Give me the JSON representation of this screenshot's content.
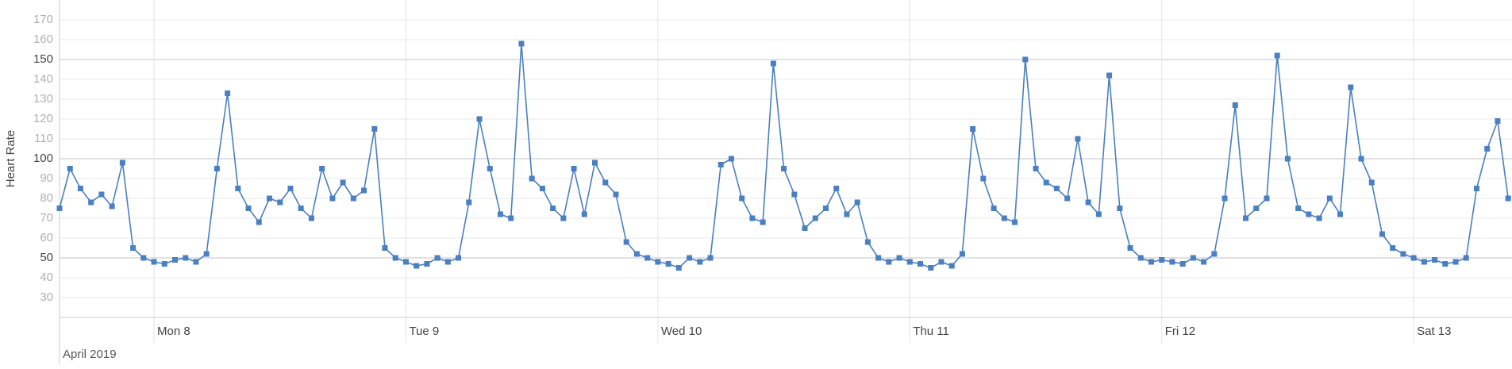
{
  "chart_data": {
    "type": "line",
    "ylabel": "Heart Rate",
    "x_group_label": "April 2019",
    "x": [
      "2019-04-07T15:00",
      "2019-04-07T16:00",
      "2019-04-07T17:00",
      "2019-04-07T18:00",
      "2019-04-07T19:00",
      "2019-04-07T20:00",
      "2019-04-07T21:00",
      "2019-04-07T22:00",
      "2019-04-07T23:00",
      "2019-04-08T00:00",
      "2019-04-08T01:00",
      "2019-04-08T02:00",
      "2019-04-08T03:00",
      "2019-04-08T04:00",
      "2019-04-08T05:00",
      "2019-04-08T06:00",
      "2019-04-08T07:00",
      "2019-04-08T08:00",
      "2019-04-08T09:00",
      "2019-04-08T10:00",
      "2019-04-08T11:00",
      "2019-04-08T12:00",
      "2019-04-08T13:00",
      "2019-04-08T14:00",
      "2019-04-08T15:00",
      "2019-04-08T16:00",
      "2019-04-08T17:00",
      "2019-04-08T18:00",
      "2019-04-08T19:00",
      "2019-04-08T20:00",
      "2019-04-08T21:00",
      "2019-04-08T22:00",
      "2019-04-08T23:00",
      "2019-04-09T00:00",
      "2019-04-09T01:00",
      "2019-04-09T02:00",
      "2019-04-09T03:00",
      "2019-04-09T04:00",
      "2019-04-09T05:00",
      "2019-04-09T06:00",
      "2019-04-09T07:00",
      "2019-04-09T08:00",
      "2019-04-09T09:00",
      "2019-04-09T10:00",
      "2019-04-09T11:00",
      "2019-04-09T12:00",
      "2019-04-09T13:00",
      "2019-04-09T14:00",
      "2019-04-09T15:00",
      "2019-04-09T16:00",
      "2019-04-09T17:00",
      "2019-04-09T18:00",
      "2019-04-09T19:00",
      "2019-04-09T20:00",
      "2019-04-09T21:00",
      "2019-04-09T22:00",
      "2019-04-09T23:00",
      "2019-04-10T00:00",
      "2019-04-10T01:00",
      "2019-04-10T02:00",
      "2019-04-10T03:00",
      "2019-04-10T04:00",
      "2019-04-10T05:00",
      "2019-04-10T06:00",
      "2019-04-10T07:00",
      "2019-04-10T08:00",
      "2019-04-10T09:00",
      "2019-04-10T10:00",
      "2019-04-10T11:00",
      "2019-04-10T12:00",
      "2019-04-10T13:00",
      "2019-04-10T14:00",
      "2019-04-10T15:00",
      "2019-04-10T16:00",
      "2019-04-10T17:00",
      "2019-04-10T18:00",
      "2019-04-10T19:00",
      "2019-04-10T20:00",
      "2019-04-10T21:00",
      "2019-04-10T22:00",
      "2019-04-10T23:00",
      "2019-04-11T00:00",
      "2019-04-11T01:00",
      "2019-04-11T02:00",
      "2019-04-11T03:00",
      "2019-04-11T04:00",
      "2019-04-11T05:00",
      "2019-04-11T06:00",
      "2019-04-11T07:00",
      "2019-04-11T08:00",
      "2019-04-11T09:00",
      "2019-04-11T10:00",
      "2019-04-11T11:00",
      "2019-04-11T12:00",
      "2019-04-11T13:00",
      "2019-04-11T14:00",
      "2019-04-11T15:00",
      "2019-04-11T16:00",
      "2019-04-11T17:00",
      "2019-04-11T18:00",
      "2019-04-11T19:00",
      "2019-04-11T20:00",
      "2019-04-11T21:00",
      "2019-04-11T22:00",
      "2019-04-11T23:00",
      "2019-04-12T00:00",
      "2019-04-12T01:00",
      "2019-04-12T02:00",
      "2019-04-12T03:00",
      "2019-04-12T04:00",
      "2019-04-12T05:00",
      "2019-04-12T06:00",
      "2019-04-12T07:00",
      "2019-04-12T08:00",
      "2019-04-12T09:00",
      "2019-04-12T10:00",
      "2019-04-12T11:00",
      "2019-04-12T12:00",
      "2019-04-12T13:00",
      "2019-04-12T14:00",
      "2019-04-12T15:00",
      "2019-04-12T16:00",
      "2019-04-12T17:00",
      "2019-04-12T18:00",
      "2019-04-12T19:00",
      "2019-04-12T20:00",
      "2019-04-12T21:00",
      "2019-04-12T22:00",
      "2019-04-12T23:00",
      "2019-04-13T00:00",
      "2019-04-13T01:00",
      "2019-04-13T02:00",
      "2019-04-13T03:00",
      "2019-04-13T04:00",
      "2019-04-13T05:00",
      "2019-04-13T06:00",
      "2019-04-13T07:00",
      "2019-04-13T08:00",
      "2019-04-13T09:00"
    ],
    "series": [
      {
        "color": "#4a7fc1",
        "values": [
          75,
          95,
          85,
          78,
          82,
          76,
          98,
          55,
          50,
          48,
          47,
          49,
          50,
          48,
          52,
          95,
          133,
          85,
          75,
          68,
          80,
          78,
          85,
          75,
          70,
          95,
          80,
          88,
          80,
          84,
          115,
          55,
          50,
          48,
          46,
          47,
          50,
          48,
          50,
          78,
          120,
          95,
          72,
          70,
          158,
          90,
          85,
          75,
          70,
          95,
          72,
          98,
          88,
          82,
          58,
          52,
          50,
          48,
          47,
          45,
          50,
          48,
          50,
          97,
          100,
          80,
          70,
          68,
          148,
          95,
          82,
          65,
          70,
          75,
          85,
          72,
          78,
          58,
          50,
          48,
          50,
          48,
          47,
          45,
          48,
          46,
          52,
          115,
          90,
          75,
          70,
          68,
          150,
          95,
          88,
          85,
          80,
          110,
          78,
          72,
          142,
          75,
          55,
          50,
          48,
          49,
          48,
          47,
          50,
          48,
          52,
          80,
          127,
          70,
          75,
          80,
          152,
          100,
          75,
          72,
          70,
          80,
          72,
          136,
          100,
          88,
          62,
          55,
          52,
          50,
          48,
          49,
          47,
          48,
          50,
          85,
          105,
          119,
          80
        ]
      }
    ],
    "xlim": [
      "2019-04-07T15:00",
      "2019-04-13T09:22"
    ],
    "xticks": [
      {
        "value": "2019-04-08T00:00",
        "label": "Mon 8"
      },
      {
        "value": "2019-04-09T00:00",
        "label": "Tue 9"
      },
      {
        "value": "2019-04-10T00:00",
        "label": "Wed 10"
      },
      {
        "value": "2019-04-11T00:00",
        "label": "Thu 11"
      },
      {
        "value": "2019-04-12T00:00",
        "label": "Fri 12"
      },
      {
        "value": "2019-04-13T00:00",
        "label": "Sat 13"
      }
    ],
    "ylim": [
      20,
      180
    ],
    "yticks": [
      30,
      40,
      50,
      60,
      70,
      80,
      90,
      100,
      110,
      120,
      130,
      140,
      150,
      160,
      170
    ],
    "grid": true
  }
}
